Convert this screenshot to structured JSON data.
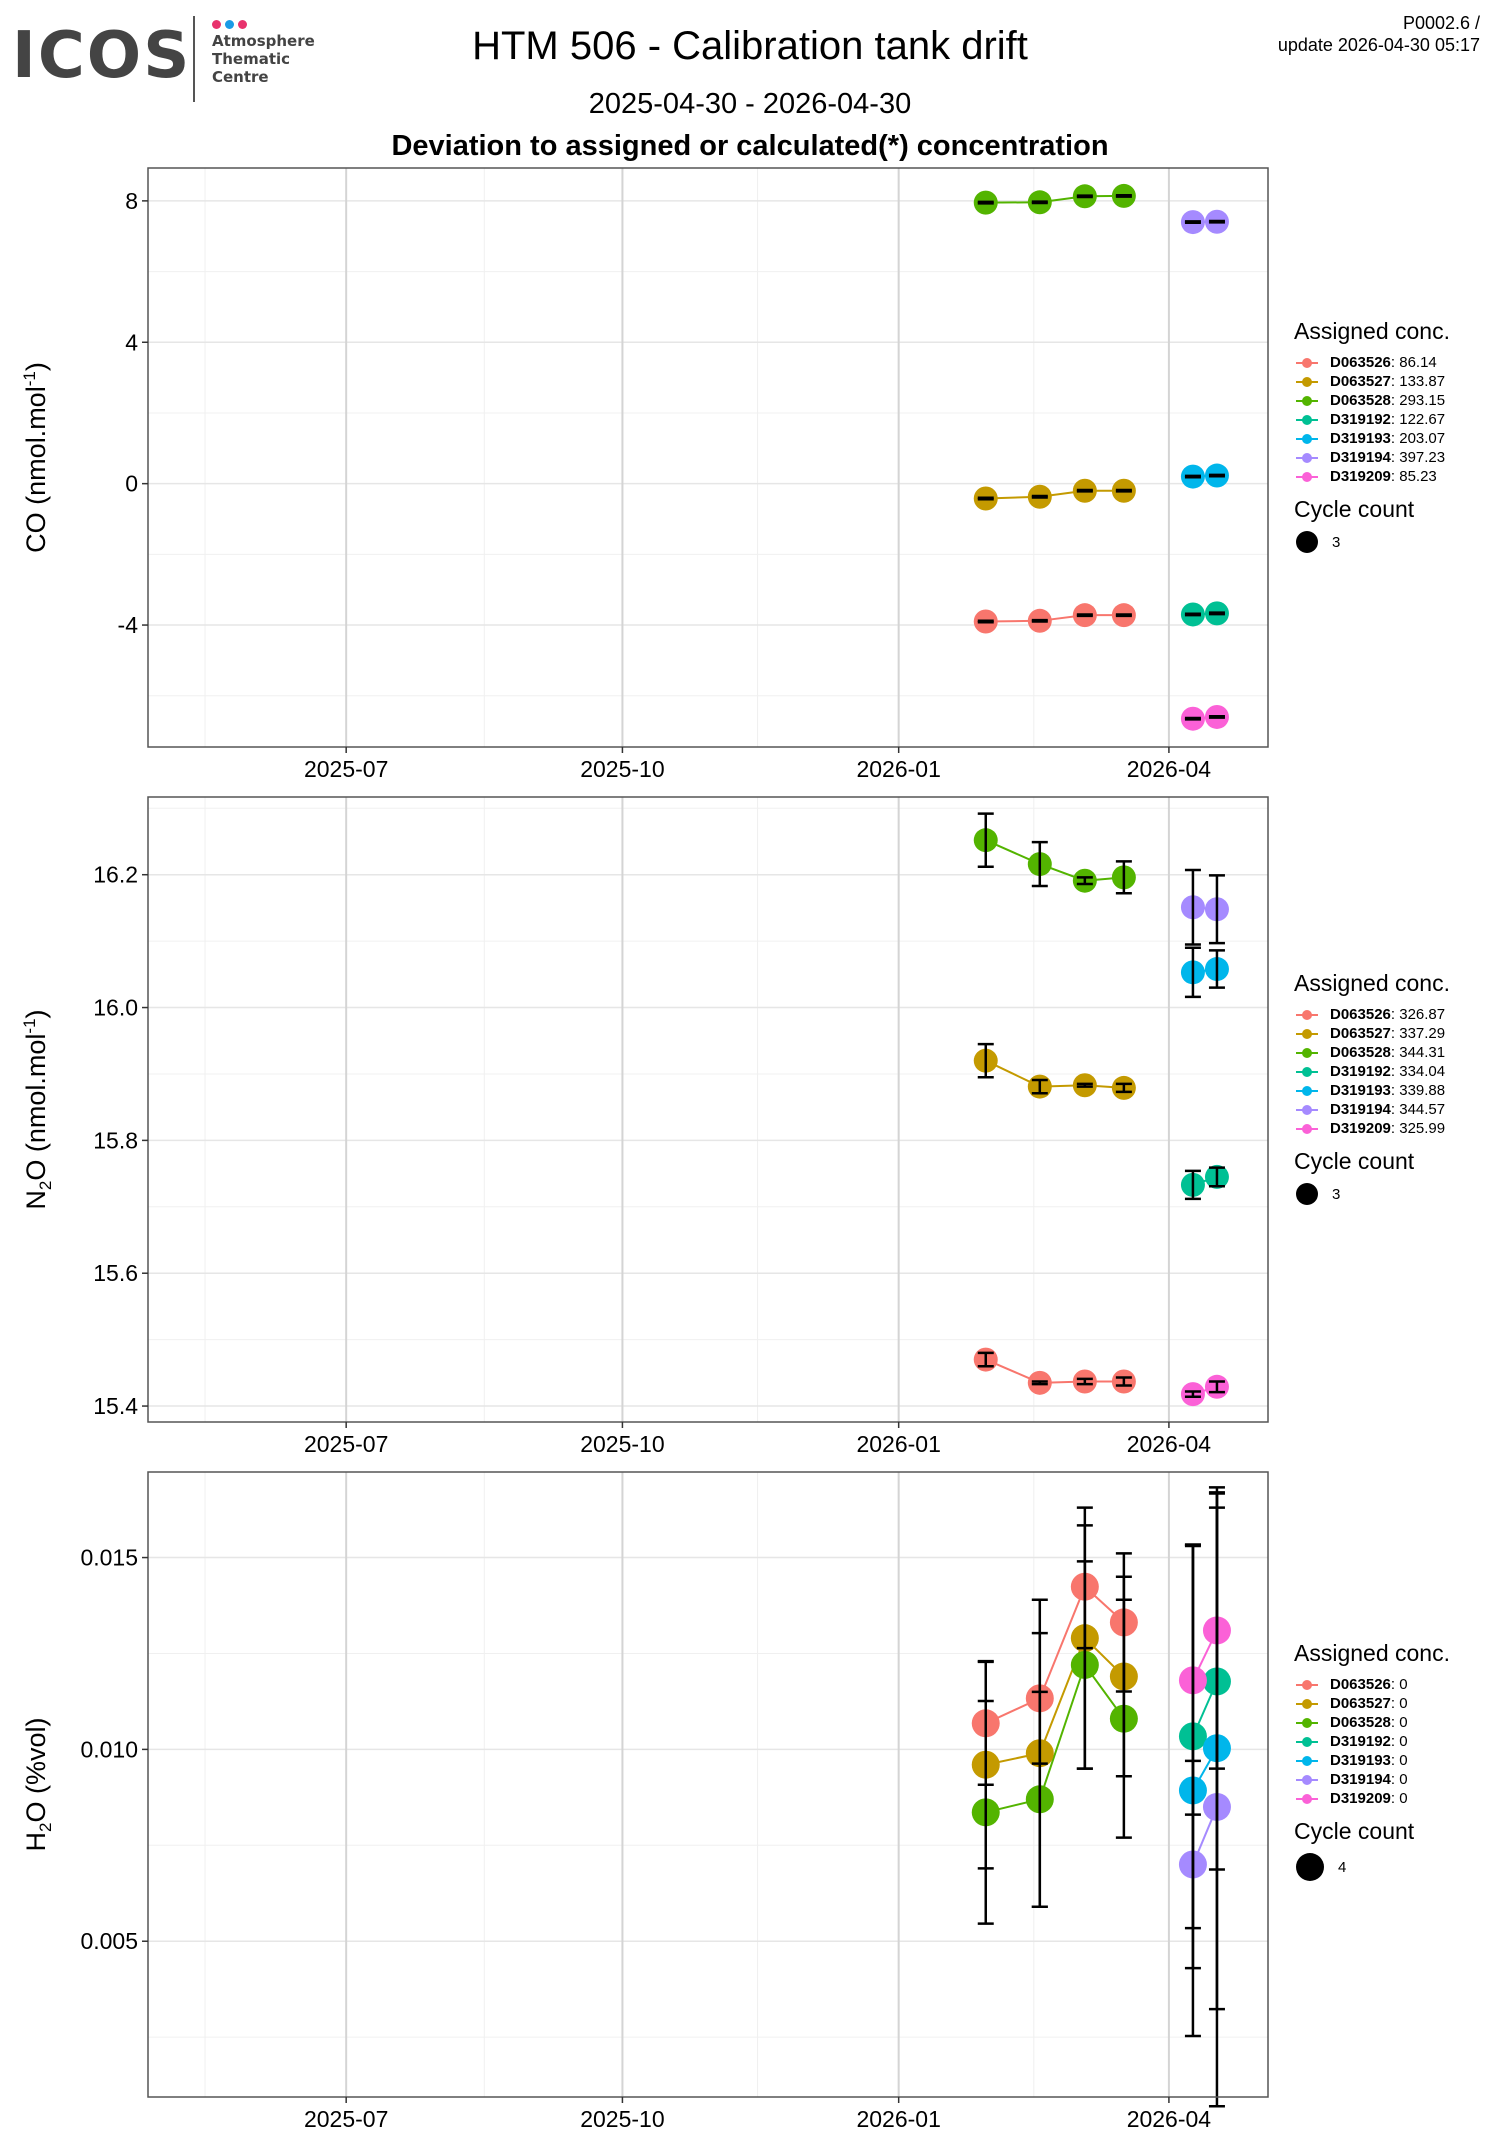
{
  "header": {
    "logo": {
      "wordmark": "ICOS",
      "lines": [
        "Atmosphere",
        "Thematic",
        "Centre"
      ],
      "dot_colors": [
        "#e8336d",
        "#1a9be6",
        "#e8336d"
      ]
    },
    "title": "HTM 506 - Calibration tank drift",
    "date_range": "2025-04-30 - 2026-04-30",
    "heading": "Deviation to assigned or calculated(*) concentration",
    "version": "P0002.6 /",
    "update": "update  2026-04-30 05:17"
  },
  "series_colors": {
    "D063526": "#F8766D",
    "D063527": "#C49A00",
    "D063528": "#53B400",
    "D319192": "#00C094",
    "D319193": "#00B6EB",
    "D319194": "#A58AFF",
    "D319209": "#FB61D7"
  },
  "chart_data": [
    {
      "type": "line",
      "id": "co",
      "title": "",
      "xlabel": "",
      "ylabel": "CO (nmol.mol-1)",
      "ylabel_parts": {
        "species": "CO",
        "sub": "",
        "unit": " (nmol.mol",
        "sup": "-1",
        "close": ")"
      },
      "x_ticks": [
        "2025-07",
        "2025-10",
        "2026-01",
        "2026-04"
      ],
      "xlim": [
        "2025-04-26",
        "2026-05-04"
      ],
      "y_ticks": [
        8,
        4,
        0,
        -4
      ],
      "ylim": [
        -7.45,
        8.93
      ],
      "y_minor": [
        6,
        2,
        -2,
        -6
      ],
      "grid": true,
      "legend_position": "right",
      "legend": {
        "title": "Assigned conc.",
        "items": [
          {
            "name": "D063526",
            "value": "86.14"
          },
          {
            "name": "D063527",
            "value": "133.87"
          },
          {
            "name": "D063528",
            "value": "293.15"
          },
          {
            "name": "D319192",
            "value": "122.67"
          },
          {
            "name": "D319193",
            "value": "203.07"
          },
          {
            "name": "D319194",
            "value": "397.23"
          },
          {
            "name": "D319209",
            "value": "85.23"
          }
        ],
        "size_title": "Cycle count",
        "size_value": "3"
      },
      "series": [
        {
          "name": "D063526",
          "x": [
            "2026-01-30",
            "2026-02-17",
            "2026-03-04",
            "2026-03-17"
          ],
          "y": [
            -3.9,
            -3.88,
            -3.72,
            -3.72
          ],
          "err": [
            0.02,
            0.02,
            0.02,
            0.02
          ]
        },
        {
          "name": "D063527",
          "x": [
            "2026-01-30",
            "2026-02-17",
            "2026-03-04",
            "2026-03-17"
          ],
          "y": [
            -0.42,
            -0.37,
            -0.2,
            -0.2
          ],
          "err": [
            0.02,
            0.02,
            0.02,
            0.02
          ]
        },
        {
          "name": "D063528",
          "x": [
            "2026-01-30",
            "2026-02-17",
            "2026-03-04",
            "2026-03-17"
          ],
          "y": [
            7.95,
            7.96,
            8.13,
            8.14
          ],
          "err": [
            0.02,
            0.02,
            0.02,
            0.02
          ]
        },
        {
          "name": "D319192",
          "x": [
            "2026-04-09",
            "2026-04-17"
          ],
          "y": [
            -3.7,
            -3.67
          ],
          "err": [
            0.02,
            0.02
          ]
        },
        {
          "name": "D319193",
          "x": [
            "2026-04-09",
            "2026-04-17"
          ],
          "y": [
            0.2,
            0.23
          ],
          "err": [
            0.02,
            0.02
          ]
        },
        {
          "name": "D319194",
          "x": [
            "2026-04-09",
            "2026-04-17"
          ],
          "y": [
            7.4,
            7.41
          ],
          "err": [
            0.02,
            0.02
          ]
        },
        {
          "name": "D319209",
          "x": [
            "2026-04-09",
            "2026-04-17"
          ],
          "y": [
            -6.65,
            -6.6
          ],
          "err": [
            0.02,
            0.02
          ]
        }
      ]
    },
    {
      "type": "line",
      "id": "n2o",
      "title": "",
      "xlabel": "",
      "ylabel": "N2O (nmol.mol-1)",
      "ylabel_parts": {
        "species": "N",
        "sub": "2",
        "unit": "O (nmol.mol",
        "sup": "-1",
        "close": ")"
      },
      "x_ticks": [
        "2025-07",
        "2025-10",
        "2026-01",
        "2026-04"
      ],
      "xlim": [
        "2025-04-26",
        "2026-05-04"
      ],
      "y_ticks": [
        16.2,
        16.0,
        15.8,
        15.6,
        15.4
      ],
      "y_tick_labels": [
        "16.2",
        "16.0",
        "15.8",
        "15.6",
        "15.4"
      ],
      "ylim": [
        15.376,
        16.317
      ],
      "y_minor": [
        16.3,
        16.1,
        15.9,
        15.7,
        15.5
      ],
      "grid": true,
      "legend_position": "right",
      "legend": {
        "title": "Assigned conc.",
        "items": [
          {
            "name": "D063526",
            "value": "326.87"
          },
          {
            "name": "D063527",
            "value": "337.29"
          },
          {
            "name": "D063528",
            "value": "344.31"
          },
          {
            "name": "D319192",
            "value": "334.04"
          },
          {
            "name": "D319193",
            "value": "339.88"
          },
          {
            "name": "D319194",
            "value": "344.57"
          },
          {
            "name": "D319209",
            "value": "325.99"
          }
        ],
        "size_title": "Cycle count",
        "size_value": "3"
      },
      "series": [
        {
          "name": "D063526",
          "x": [
            "2026-01-30",
            "2026-02-17",
            "2026-03-04",
            "2026-03-17"
          ],
          "y": [
            15.47,
            15.435,
            15.437,
            15.437
          ],
          "err": [
            0.01,
            0.002,
            0.004,
            0.006
          ]
        },
        {
          "name": "D063527",
          "x": [
            "2026-01-30",
            "2026-02-17",
            "2026-03-04",
            "2026-03-17"
          ],
          "y": [
            15.92,
            15.881,
            15.883,
            15.879
          ],
          "err": [
            0.025,
            0.01,
            0.002,
            0.006
          ]
        },
        {
          "name": "D063528",
          "x": [
            "2026-01-30",
            "2026-02-17",
            "2026-03-04",
            "2026-03-17"
          ],
          "y": [
            16.252,
            16.216,
            16.191,
            16.196
          ],
          "err": [
            0.04,
            0.033,
            0.005,
            0.024
          ]
        },
        {
          "name": "D319192",
          "x": [
            "2026-04-09",
            "2026-04-17"
          ],
          "y": [
            15.733,
            15.745
          ],
          "err": [
            0.021,
            0.014
          ]
        },
        {
          "name": "D319193",
          "x": [
            "2026-04-09",
            "2026-04-17"
          ],
          "y": [
            16.053,
            16.058
          ],
          "err": [
            0.037,
            0.028
          ]
        },
        {
          "name": "D319194",
          "x": [
            "2026-04-09",
            "2026-04-17"
          ],
          "y": [
            16.151,
            16.148
          ],
          "err": [
            0.056,
            0.051
          ]
        },
        {
          "name": "D319209",
          "x": [
            "2026-04-09",
            "2026-04-17"
          ],
          "y": [
            15.418,
            15.429
          ],
          "err": [
            0.004,
            0.008
          ]
        }
      ]
    },
    {
      "type": "line",
      "id": "h2o",
      "title": "",
      "xlabel": "",
      "ylabel": "H2O (%vol)",
      "ylabel_parts": {
        "species": "H",
        "sub": "2",
        "unit": "O (%vol)",
        "sup": "",
        "close": ""
      },
      "x_ticks": [
        "2025-07",
        "2025-10",
        "2026-01",
        "2026-04"
      ],
      "xlim": [
        "2025-04-26",
        "2026-05-04"
      ],
      "y_ticks": [
        0.015,
        0.01,
        0.005
      ],
      "y_tick_labels": [
        "0.015",
        "0.010",
        "0.005"
      ],
      "ylim": [
        0.00094,
        0.01723
      ],
      "y_minor": [
        0.0175,
        0.0125,
        0.0075,
        0.0025
      ],
      "grid": true,
      "legend_position": "right",
      "legend": {
        "title": "Assigned conc.",
        "items": [
          {
            "name": "D063526",
            "value": "0"
          },
          {
            "name": "D063527",
            "value": "0"
          },
          {
            "name": "D063528",
            "value": "0"
          },
          {
            "name": "D319192",
            "value": "0"
          },
          {
            "name": "D319193",
            "value": "0"
          },
          {
            "name": "D319194",
            "value": "0"
          },
          {
            "name": "D319209",
            "value": "0"
          }
        ],
        "size_title": "Cycle count",
        "size_value": "4"
      },
      "series": [
        {
          "name": "D063526",
          "x": [
            "2026-01-30",
            "2026-02-17",
            "2026-03-04",
            "2026-03-17"
          ],
          "y": [
            0.01068,
            0.01133,
            0.01424,
            0.01331
          ],
          "err": [
            0.0016,
            0.0017,
            0.0016,
            0.0018
          ]
        },
        {
          "name": "D063527",
          "x": [
            "2026-01-30",
            "2026-02-17",
            "2026-03-04",
            "2026-03-17"
          ],
          "y": [
            0.0096,
            0.0099,
            0.0129,
            0.0119
          ],
          "err": [
            0.0027,
            0.004,
            0.0034,
            0.0026
          ]
        },
        {
          "name": "D063528",
          "x": [
            "2026-01-30",
            "2026-02-17",
            "2026-03-04",
            "2026-03-17"
          ],
          "y": [
            0.00836,
            0.0087,
            0.0122,
            0.0108
          ],
          "err": [
            0.0029,
            0.0028,
            0.0027,
            0.0031
          ]
        },
        {
          "name": "D319192",
          "x": [
            "2026-04-09",
            "2026-04-17"
          ],
          "y": [
            0.01034,
            0.01177
          ],
          "err": [
            0.005,
            0.0049
          ]
        },
        {
          "name": "D319193",
          "x": [
            "2026-04-09",
            "2026-04-17"
          ],
          "y": [
            0.00893,
            0.01003
          ],
          "err": [
            0.0064,
            0.0068
          ]
        },
        {
          "name": "D319194",
          "x": [
            "2026-04-09",
            "2026-04-17"
          ],
          "y": [
            0.007,
            0.0085
          ],
          "err": [
            0.0027,
            0.0078
          ]
        },
        {
          "name": "D319209",
          "x": [
            "2026-04-09",
            "2026-04-17"
          ],
          "y": [
            0.0118,
            0.0131
          ],
          "err": [
            0.0035,
            0.0036
          ]
        }
      ]
    }
  ]
}
